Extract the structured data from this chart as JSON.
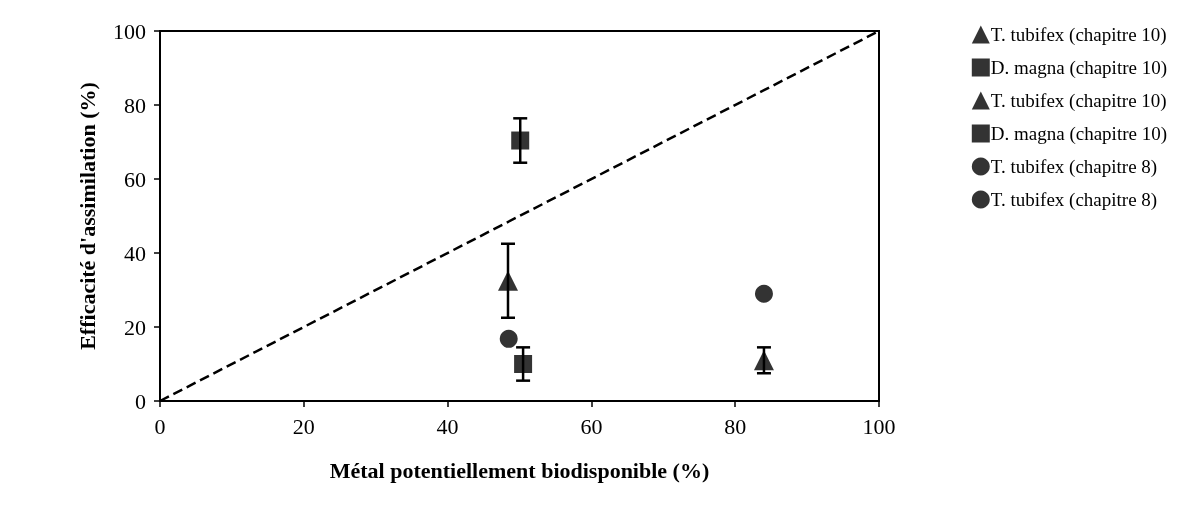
{
  "chart_data": {
    "type": "scatter",
    "xlabel": "Métal potentiellement biodisponible (%)",
    "ylabel": "Efficacité d'assimilation (%)",
    "xlim": [
      0,
      100
    ],
    "xticks": [
      0,
      20,
      40,
      60,
      80,
      100
    ],
    "ylim": [
      0,
      100
    ],
    "yticks": [
      0,
      20,
      40,
      60,
      80,
      100
    ],
    "grid": false,
    "legend": "right",
    "series": [
      {
        "name": "T. tubifex (chapitre 10)",
        "color": "#000000",
        "marker": "triangle",
        "x": [
          48.4
        ],
        "values": [
          32.5
        ],
        "errors": [
          10
        ]
      },
      {
        "name": "D. magna (chapitre 10)",
        "color": "#000000",
        "marker": "square",
        "x": [
          50.1
        ],
        "values": [
          70.4
        ],
        "errors": [
          6
        ]
      },
      {
        "name": "T. tubifex (chapitre 10)",
        "color": "#000000",
        "marker": "triangle",
        "x": [
          84
        ],
        "values": [
          11
        ],
        "errors": [
          3.5
        ]
      },
      {
        "name": "D. magna (chapitre 10)",
        "color": "#000000",
        "marker": "square",
        "x": [
          50.5
        ],
        "values": [
          10
        ],
        "errors": [
          4.5
        ]
      },
      {
        "name": "T. tubifex (chapitre 8)",
        "color": "#000000",
        "marker": "circle",
        "x": [
          48.5
        ],
        "values": [
          16.8
        ]
      },
      {
        "name": "T. tubifex (chapitre 8)",
        "color": "#000000",
        "marker": "circle",
        "x": [
          84
        ],
        "values": [
          29
        ]
      },
      {
        "type": "line",
        "color": "#000000",
        "marker": "none",
        "line_style": "dashed",
        "x": [
          0,
          100
        ],
        "values": [
          0,
          100
        ]
      }
    ]
  }
}
